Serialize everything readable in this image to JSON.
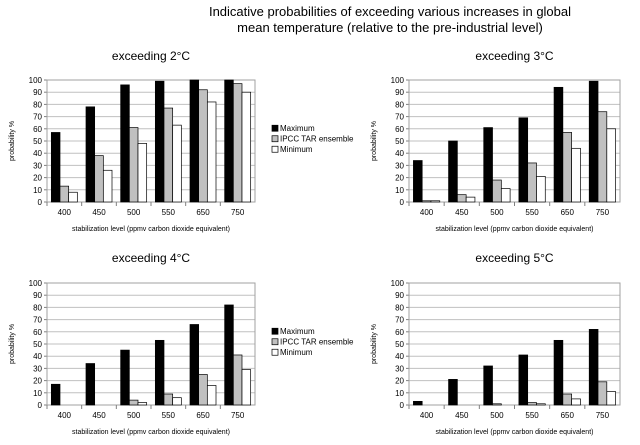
{
  "title": "Indicative probabilities of exceeding various increases in global mean temperature (relative to the pre-industrial level)",
  "colors": {
    "Maximum": "#000000",
    "IPCC TAR ensemble": "#c0c0c0",
    "Minimum": "#ffffff",
    "grid": "#c0c0c0"
  },
  "chart_data": [
    {
      "type": "bar",
      "title": "exceeding 2°C",
      "xlabel": "stabilization level (ppmv carbon dioxide equivalent)",
      "ylabel": "probability %",
      "ylim": [
        0,
        100
      ],
      "yticks": [
        0,
        10,
        20,
        30,
        40,
        50,
        60,
        70,
        80,
        90,
        100
      ],
      "grid": true,
      "legend": "right",
      "categories": [
        "400",
        "450",
        "500",
        "550",
        "650",
        "750"
      ],
      "series": [
        {
          "name": "Maximum",
          "values": [
            57,
            78,
            96,
            99,
            100,
            100
          ]
        },
        {
          "name": "IPCC TAR ensemble",
          "values": [
            13,
            38,
            61,
            77,
            92,
            97
          ]
        },
        {
          "name": "Minimum",
          "values": [
            8,
            26,
            48,
            63,
            82,
            90
          ]
        }
      ]
    },
    {
      "type": "bar",
      "title": "exceeding 3°C",
      "xlabel": "stabilization level (ppmv carbon dioxide equivalent)",
      "ylabel": "probability %",
      "ylim": [
        0,
        100
      ],
      "yticks": [
        0,
        10,
        20,
        30,
        40,
        50,
        60,
        70,
        80,
        90,
        100
      ],
      "grid": true,
      "legend": "none",
      "categories": [
        "400",
        "450",
        "500",
        "550",
        "650",
        "750"
      ],
      "series": [
        {
          "name": "Maximum",
          "values": [
            34,
            50,
            61,
            69,
            94,
            99
          ]
        },
        {
          "name": "IPCC TAR ensemble",
          "values": [
            1,
            6,
            18,
            32,
            57,
            74
          ]
        },
        {
          "name": "Minimum",
          "values": [
            1,
            4,
            11,
            21,
            44,
            60
          ]
        }
      ]
    },
    {
      "type": "bar",
      "title": "exceeding 4°C",
      "xlabel": "stabilization level (ppmv carbon dioxide equivalent)",
      "ylabel": "probability %",
      "ylim": [
        0,
        100
      ],
      "yticks": [
        0,
        10,
        20,
        30,
        40,
        50,
        60,
        70,
        80,
        90,
        100
      ],
      "grid": true,
      "legend": "right",
      "categories": [
        "400",
        "450",
        "500",
        "550",
        "650",
        "750"
      ],
      "series": [
        {
          "name": "Maximum",
          "values": [
            17,
            34,
            45,
            53,
            66,
            82
          ]
        },
        {
          "name": "IPCC TAR ensemble",
          "values": [
            0,
            0,
            4,
            9,
            25,
            41
          ]
        },
        {
          "name": "Minimum",
          "values": [
            0,
            0,
            2,
            6,
            16,
            29
          ]
        }
      ]
    },
    {
      "type": "bar",
      "title": "exceeding 5°C",
      "xlabel": "stabilization level (ppmv carbon dioxide equivalent)",
      "ylabel": "probability %",
      "ylim": [
        0,
        100
      ],
      "yticks": [
        0,
        10,
        20,
        30,
        40,
        50,
        60,
        70,
        80,
        90,
        100
      ],
      "grid": true,
      "legend": "none",
      "categories": [
        "400",
        "450",
        "500",
        "550",
        "650",
        "750"
      ],
      "series": [
        {
          "name": "Maximum",
          "values": [
            3,
            21,
            32,
            41,
            53,
            62
          ]
        },
        {
          "name": "IPCC TAR ensemble",
          "values": [
            0,
            0,
            1,
            2,
            9,
            19
          ]
        },
        {
          "name": "Minimum",
          "values": [
            0,
            0,
            0,
            1,
            5,
            11
          ]
        }
      ]
    }
  ]
}
